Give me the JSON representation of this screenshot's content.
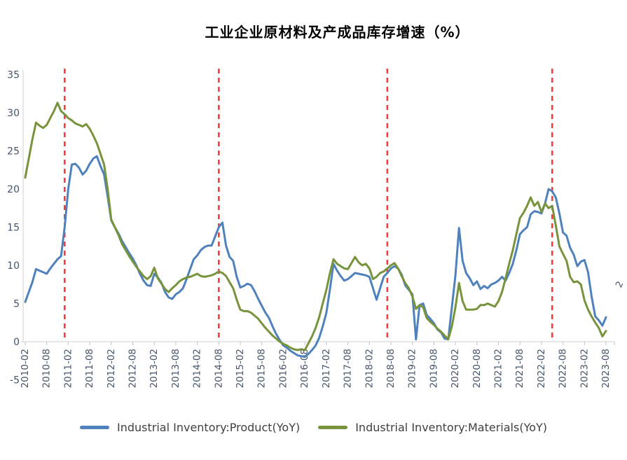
{
  "page": {
    "title": "工业企业原材料及产成品库存增速（%）"
  },
  "chart_data": {
    "type": "line",
    "title": "工业企业原材料及产成品库存增速（%）",
    "xlabel": "",
    "ylabel": "",
    "ylim": [
      -5,
      35
    ],
    "grid": false,
    "legend_position": "bottom",
    "frequency": "monthly",
    "x_start_month": "2010-02",
    "x_end_month": "2023-08",
    "y_tick_labels": [
      "35",
      "30",
      "25",
      "20",
      "15",
      "10",
      "5",
      "0",
      "-5"
    ],
    "x_tick_labels": [
      "2010-02",
      "2010-08",
      "2011-02",
      "2011-08",
      "2012-02",
      "2012-08",
      "2013-02",
      "2013-08",
      "2014-02",
      "2014-08",
      "2015-02",
      "2015-08",
      "2016-02",
      "2016-08",
      "2017-02",
      "2017-08",
      "2018-02",
      "2018-08",
      "2019-02",
      "2019-08",
      "2020-02",
      "2020-08",
      "2021-02",
      "2021-08",
      "2022-02",
      "2022-08",
      "2023-02",
      "2023-08"
    ],
    "series": [
      {
        "name": "Industrial Inventory:Product(YoY)",
        "color": "#4f81bd",
        "values": [
          5.2,
          6.5,
          7.8,
          9.5,
          9.3,
          9.1,
          8.9,
          9.6,
          10.2,
          10.8,
          11.2,
          15.0,
          20.0,
          23.2,
          23.3,
          22.8,
          21.9,
          22.4,
          23.3,
          24.0,
          24.3,
          23.0,
          21.9,
          19.0,
          15.9,
          15.0,
          14.2,
          13.2,
          12.4,
          11.6,
          10.9,
          10.0,
          8.9,
          8.0,
          7.4,
          7.3,
          8.9,
          8.4,
          7.7,
          6.5,
          5.8,
          5.6,
          6.2,
          6.5,
          7.0,
          8.2,
          9.5,
          10.8,
          11.3,
          12.0,
          12.4,
          12.6,
          12.6,
          13.8,
          15.0,
          15.6,
          12.6,
          11.1,
          10.6,
          8.5,
          7.1,
          7.3,
          7.6,
          7.4,
          6.6,
          5.6,
          4.7,
          3.8,
          3.1,
          2.0,
          1.0,
          0.2,
          -0.5,
          -0.8,
          -1.2,
          -1.5,
          -1.8,
          -1.9,
          -2.0,
          -1.6,
          -1.1,
          -0.5,
          0.5,
          2.0,
          3.8,
          6.9,
          10.2,
          9.3,
          8.6,
          8.0,
          8.2,
          8.6,
          9.0,
          8.9,
          8.8,
          8.7,
          8.5,
          7.0,
          5.5,
          7.0,
          8.5,
          9.0,
          9.6,
          9.9,
          9.6,
          8.8,
          7.4,
          6.8,
          6.2,
          0.3,
          4.8,
          5.0,
          3.5,
          3.0,
          2.4,
          1.6,
          1.2,
          0.4,
          0.3,
          4.5,
          8.7,
          14.9,
          10.6,
          9.0,
          8.3,
          7.4,
          7.9,
          6.9,
          7.3,
          7.0,
          7.5,
          7.7,
          8.0,
          8.5,
          8.0,
          9.0,
          10.2,
          12.0,
          14.1,
          14.6,
          15.0,
          16.7,
          17.1,
          17.0,
          16.8,
          18.1,
          20.0,
          19.7,
          18.9,
          16.8,
          14.3,
          13.9,
          12.3,
          11.4,
          9.9,
          10.5,
          10.7,
          9.1,
          5.9,
          3.3,
          2.8,
          2.1,
          3.2
        ]
      },
      {
        "name": "Industrial Inventory:Materials(YoY)",
        "color": "#77933c",
        "values": [
          21.5,
          24.0,
          26.5,
          28.7,
          28.3,
          28.0,
          28.4,
          29.3,
          30.2,
          31.3,
          30.2,
          29.8,
          29.3,
          29.0,
          28.6,
          28.4,
          28.2,
          28.5,
          27.9,
          27.0,
          26.0,
          24.6,
          23.2,
          20.0,
          16.0,
          15.0,
          14.0,
          12.8,
          12.0,
          11.2,
          10.5,
          9.8,
          9.2,
          8.6,
          8.2,
          8.6,
          9.7,
          8.3,
          7.6,
          6.9,
          6.5,
          7.0,
          7.4,
          7.9,
          8.2,
          8.4,
          8.5,
          8.7,
          8.9,
          8.6,
          8.5,
          8.6,
          8.7,
          8.9,
          9.2,
          9.0,
          8.6,
          7.8,
          7.0,
          5.5,
          4.2,
          4.0,
          4.0,
          3.8,
          3.4,
          3.0,
          2.4,
          1.8,
          1.3,
          0.8,
          0.4,
          0.0,
          -0.3,
          -0.5,
          -0.8,
          -1.0,
          -1.1,
          -1.0,
          -1.1,
          -0.2,
          0.7,
          1.8,
          3.2,
          5.0,
          6.8,
          9.0,
          10.8,
          10.2,
          9.9,
          9.6,
          9.5,
          10.3,
          11.1,
          10.4,
          10.0,
          10.2,
          9.6,
          8.2,
          8.5,
          9.0,
          9.2,
          9.6,
          10.0,
          10.3,
          9.6,
          8.6,
          7.7,
          7.0,
          5.9,
          4.3,
          4.8,
          4.5,
          3.1,
          2.6,
          2.2,
          1.7,
          1.3,
          0.8,
          0.3,
          2.0,
          4.5,
          7.7,
          5.3,
          4.2,
          4.2,
          4.2,
          4.3,
          4.8,
          4.8,
          5.0,
          4.8,
          4.6,
          5.3,
          6.5,
          8.3,
          10.2,
          12.0,
          14.1,
          16.2,
          16.9,
          17.8,
          18.9,
          17.8,
          18.3,
          17.0,
          18.1,
          17.5,
          17.8,
          15.2,
          12.5,
          11.5,
          10.6,
          8.5,
          7.8,
          7.9,
          7.5,
          5.4,
          4.2,
          3.3,
          2.5,
          1.8,
          0.7,
          1.4
        ]
      }
    ],
    "event_lines": {
      "style": "dashed",
      "color": "#fb3a3a",
      "months": [
        "2011-01",
        "2014-08",
        "2018-07",
        "2022-05"
      ]
    },
    "clipped_edge_label": "2",
    "axis_label_color": "#44546a",
    "axis_line_color": "#d9d9d9"
  }
}
